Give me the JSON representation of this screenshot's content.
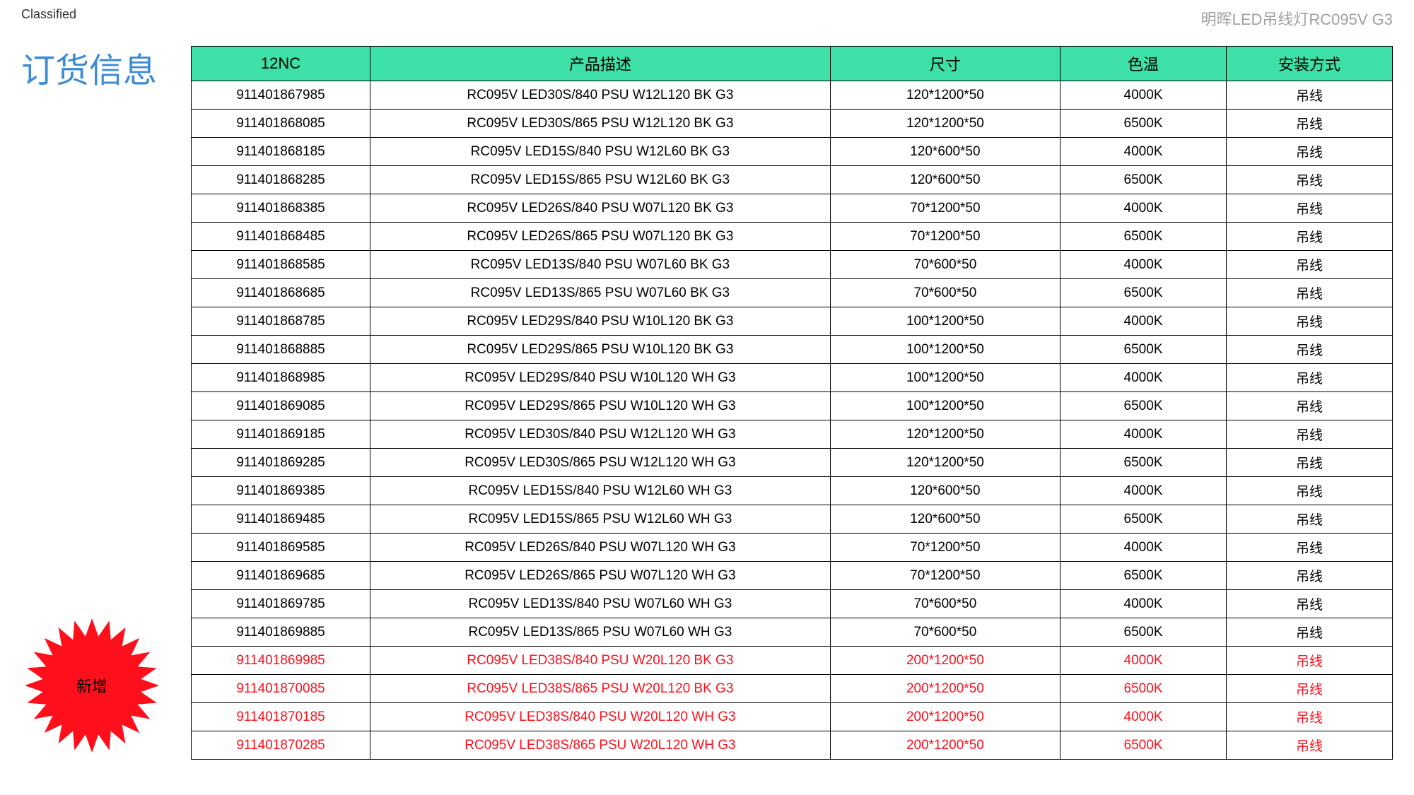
{
  "header": {
    "classified": "Classified",
    "product_title": "明晖LED吊线灯RC095V G3",
    "section_title": "订货信息"
  },
  "starburst": {
    "label": "新增",
    "fill_color": "#ff0f1b"
  },
  "table": {
    "header_bg": "#3de0a6",
    "columns": [
      {
        "label": "12NC",
        "width": "14%"
      },
      {
        "label": "产品描述",
        "width": "36%"
      },
      {
        "label": "尺寸",
        "width": "18%"
      },
      {
        "label": "色温",
        "width": "13%"
      },
      {
        "label": "安装方式",
        "width": "13%"
      }
    ],
    "row_text_color": "#000000",
    "highlight_text_color": "#ff0f1b",
    "rows": [
      {
        "cells": [
          "911401867985",
          "RC095V LED30S/840 PSU W12L120 BK G3",
          "120*1200*50",
          "4000K",
          "吊线"
        ],
        "hl": false
      },
      {
        "cells": [
          "911401868085",
          "RC095V LED30S/865 PSU W12L120 BK G3",
          "120*1200*50",
          "6500K",
          "吊线"
        ],
        "hl": false
      },
      {
        "cells": [
          "911401868185",
          "RC095V LED15S/840 PSU W12L60 BK G3",
          "120*600*50",
          "4000K",
          "吊线"
        ],
        "hl": false
      },
      {
        "cells": [
          "911401868285",
          "RC095V LED15S/865 PSU W12L60 BK G3",
          "120*600*50",
          "6500K",
          "吊线"
        ],
        "hl": false
      },
      {
        "cells": [
          "911401868385",
          "RC095V LED26S/840 PSU W07L120 BK G3",
          "70*1200*50",
          "4000K",
          "吊线"
        ],
        "hl": false
      },
      {
        "cells": [
          "911401868485",
          "RC095V LED26S/865 PSU W07L120 BK G3",
          "70*1200*50",
          "6500K",
          "吊线"
        ],
        "hl": false
      },
      {
        "cells": [
          "911401868585",
          "RC095V LED13S/840 PSU W07L60 BK G3",
          "70*600*50",
          "4000K",
          "吊线"
        ],
        "hl": false
      },
      {
        "cells": [
          "911401868685",
          "RC095V LED13S/865 PSU W07L60 BK G3",
          "70*600*50",
          "6500K",
          "吊线"
        ],
        "hl": false
      },
      {
        "cells": [
          "911401868785",
          "RC095V LED29S/840 PSU W10L120 BK G3",
          "100*1200*50",
          "4000K",
          "吊线"
        ],
        "hl": false
      },
      {
        "cells": [
          "911401868885",
          "RC095V LED29S/865 PSU W10L120 BK G3",
          "100*1200*50",
          "6500K",
          "吊线"
        ],
        "hl": false
      },
      {
        "cells": [
          "911401868985",
          "RC095V LED29S/840 PSU W10L120 WH G3",
          "100*1200*50",
          "4000K",
          "吊线"
        ],
        "hl": false
      },
      {
        "cells": [
          "911401869085",
          "RC095V LED29S/865 PSU W10L120 WH G3",
          "100*1200*50",
          "6500K",
          "吊线"
        ],
        "hl": false
      },
      {
        "cells": [
          "911401869185",
          "RC095V LED30S/840 PSU W12L120 WH G3",
          "120*1200*50",
          "4000K",
          "吊线"
        ],
        "hl": false
      },
      {
        "cells": [
          "911401869285",
          "RC095V LED30S/865 PSU W12L120 WH G3",
          "120*1200*50",
          "6500K",
          "吊线"
        ],
        "hl": false
      },
      {
        "cells": [
          "911401869385",
          "RC095V LED15S/840 PSU W12L60 WH G3",
          "120*600*50",
          "4000K",
          "吊线"
        ],
        "hl": false
      },
      {
        "cells": [
          "911401869485",
          "RC095V LED15S/865 PSU W12L60 WH G3",
          "120*600*50",
          "6500K",
          "吊线"
        ],
        "hl": false
      },
      {
        "cells": [
          "911401869585",
          "RC095V LED26S/840 PSU W07L120 WH G3",
          "70*1200*50",
          "4000K",
          "吊线"
        ],
        "hl": false
      },
      {
        "cells": [
          "911401869685",
          "RC095V LED26S/865 PSU W07L120 WH G3",
          "70*1200*50",
          "6500K",
          "吊线"
        ],
        "hl": false
      },
      {
        "cells": [
          "911401869785",
          "RC095V LED13S/840 PSU W07L60 WH G3",
          "70*600*50",
          "4000K",
          "吊线"
        ],
        "hl": false
      },
      {
        "cells": [
          "911401869885",
          "RC095V LED13S/865 PSU W07L60 WH G3",
          "70*600*50",
          "6500K",
          "吊线"
        ],
        "hl": false
      },
      {
        "cells": [
          "911401869985",
          "RC095V LED38S/840 PSU W20L120 BK G3",
          "200*1200*50",
          "4000K",
          "吊线"
        ],
        "hl": true
      },
      {
        "cells": [
          "911401870085",
          "RC095V LED38S/865 PSU W20L120 BK G3",
          "200*1200*50",
          "6500K",
          "吊线"
        ],
        "hl": true
      },
      {
        "cells": [
          "911401870185",
          "RC095V LED38S/840 PSU W20L120 WH G3",
          "200*1200*50",
          "4000K",
          "吊线"
        ],
        "hl": true
      },
      {
        "cells": [
          "911401870285",
          "RC095V LED38S/865 PSU W20L120 WH G3",
          "200*1200*50",
          "6500K",
          "吊线"
        ],
        "hl": true
      }
    ]
  }
}
